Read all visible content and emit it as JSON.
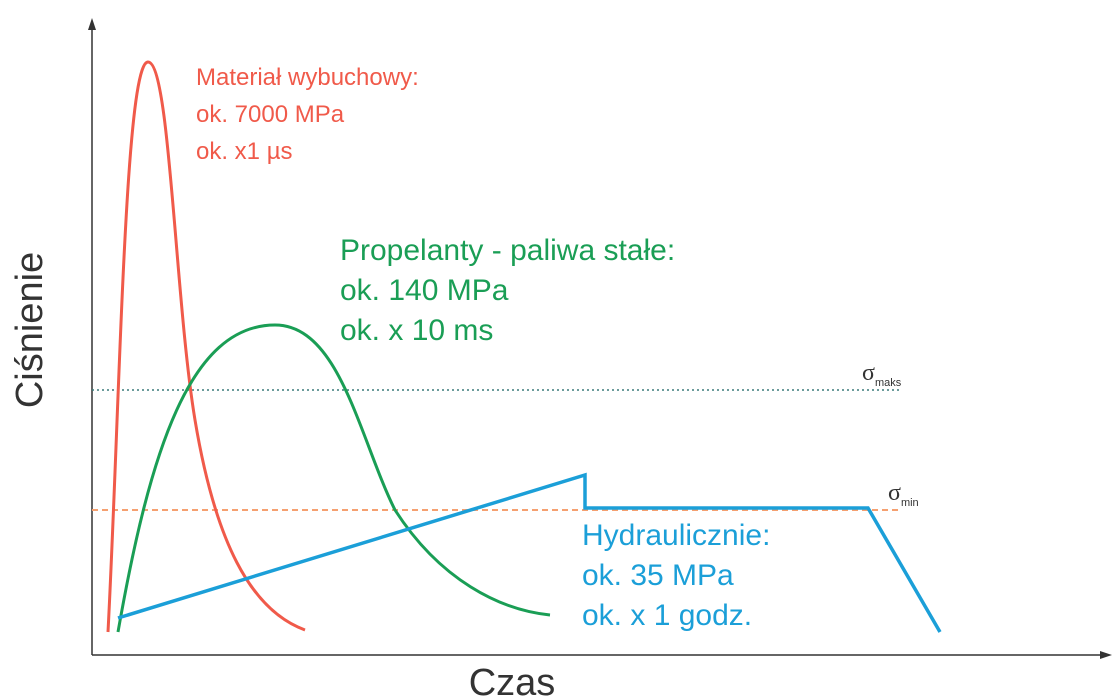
{
  "axes": {
    "y_label": "Ciśnienie",
    "x_label": "Czas"
  },
  "explosive": {
    "title": "Materiał wybuchowy:",
    "pressure": "ok. 7000 MPa",
    "time": "ok. x1 µs"
  },
  "propellant": {
    "title": "Propelanty - paliwa stałe:",
    "pressure": "ok. 140 MPa",
    "time": "ok. x 10 ms"
  },
  "hydraulic": {
    "title": "Hydraulicznie:",
    "pressure": "ok. 35 MPa",
    "time": "ok. x 1 godz."
  },
  "sigma_max": {
    "symbol": "σ",
    "subscript": "maks"
  },
  "sigma_min": {
    "symbol": "σ",
    "subscript": "min"
  }
}
